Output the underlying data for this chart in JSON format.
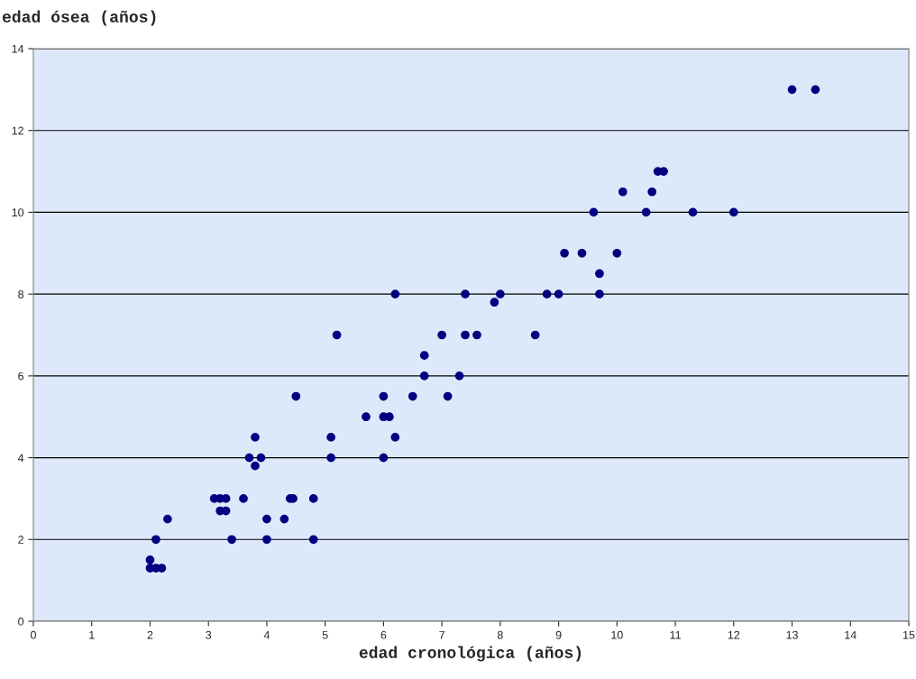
{
  "chart_data": {
    "type": "scatter",
    "xlabel": "edad cronológica (años)",
    "ylabel": "edad ósea (años)",
    "x": [
      2,
      2,
      2.1,
      2.2,
      2.1,
      2.3,
      3.1,
      3.2,
      3.3,
      3.2,
      3.3,
      3.4,
      3.6,
      3.7,
      3.8,
      3.8,
      3.9,
      4,
      4,
      4.3,
      4.4,
      4.45,
      4.5,
      4.8,
      4.8,
      5.1,
      5.1,
      5.2,
      5.7,
      6,
      6,
      6.1,
      6,
      6.2,
      6.2,
      6.5,
      6.7,
      6.7,
      7,
      7.1,
      7.3,
      7.4,
      7.4,
      7.6,
      7.9,
      8,
      8.6,
      8.8,
      9,
      9.1,
      9.4,
      9.6,
      9.7,
      9.7,
      10,
      10.1,
      10.5,
      10.6,
      10.7,
      10.8,
      11.3,
      12,
      13,
      13.4
    ],
    "series": [
      {
        "color": "#000080",
        "values": [
          1.5,
          1.3,
          1.3,
          1.3,
          2,
          2.5,
          3,
          3,
          3,
          2.7,
          2.7,
          2,
          3,
          4,
          4.5,
          3.8,
          4,
          2.5,
          2,
          2.5,
          3,
          3,
          5.5,
          3,
          2,
          4.5,
          4,
          7,
          5,
          5.5,
          5,
          5,
          4,
          4.5,
          8,
          5.5,
          6.5,
          6,
          7,
          5.5,
          6,
          8,
          7,
          7,
          7.8,
          8,
          7,
          8,
          8,
          9,
          9,
          10,
          8.5,
          8,
          9,
          10.5,
          10,
          10.5,
          11,
          11,
          10,
          10,
          13,
          13
        ]
      }
    ],
    "xlim": [
      0,
      15
    ],
    "xticks": [
      0,
      1,
      2,
      3,
      4,
      5,
      6,
      7,
      8,
      9,
      10,
      11,
      12,
      13,
      14,
      15
    ],
    "ylim": [
      0,
      14
    ],
    "yticks": [
      0,
      2,
      4,
      6,
      8,
      10,
      12,
      14
    ],
    "grid": "y",
    "marker": "circle",
    "legend": false
  }
}
